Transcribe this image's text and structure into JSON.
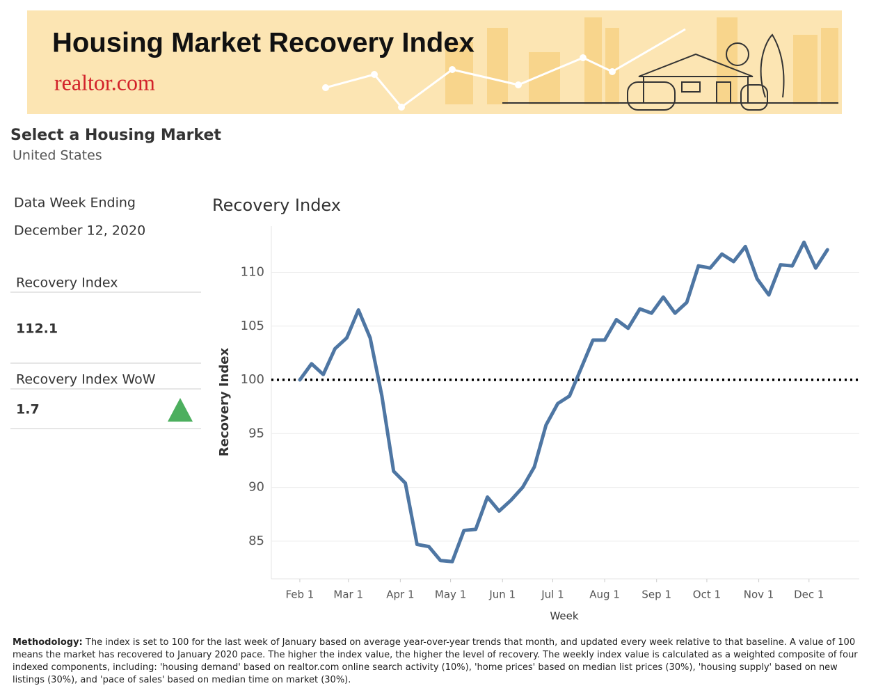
{
  "header": {
    "title": "Housing Market Recovery Index",
    "logo": "realtor.com"
  },
  "sidebar": {
    "select_label": "Select a Housing Market",
    "market": "United States",
    "week_label": "Data Week Ending",
    "week": "December 12, 2020",
    "index_label": "Recovery Index",
    "index_value": 112.1,
    "wow_label": "Recovery Index WoW",
    "wow_value": 1.7
  },
  "chart_data": {
    "type": "line",
    "title": "Recovery Index",
    "xlabel": "Week",
    "ylabel": "Recovery Index",
    "x": [
      "Feb 1",
      "Feb 8",
      "Feb 15",
      "Feb 22",
      "Feb 29",
      "Mar 7",
      "Mar 14",
      "Mar 21",
      "Mar 28",
      "Apr 4",
      "Apr 11",
      "Apr 18",
      "Apr 25",
      "May 2",
      "May 9",
      "May 16",
      "May 23",
      "May 30",
      "Jun 6",
      "Jun 13",
      "Jun 20",
      "Jun 27",
      "Jul 4",
      "Jul 11",
      "Jul 18",
      "Jul 25",
      "Aug 1",
      "Aug 8",
      "Aug 15",
      "Aug 22",
      "Aug 29",
      "Sep 5",
      "Sep 12",
      "Sep 19",
      "Sep 26",
      "Oct 3",
      "Oct 10",
      "Oct 17",
      "Oct 24",
      "Oct 31",
      "Nov 7",
      "Nov 14",
      "Nov 21",
      "Nov 28",
      "Dec 5",
      "Dec 12"
    ],
    "values": [
      100.0,
      101.5,
      100.5,
      102.9,
      103.9,
      106.5,
      103.9,
      98.5,
      91.5,
      90.4,
      84.7,
      84.5,
      83.2,
      83.1,
      86.0,
      86.1,
      89.1,
      87.8,
      88.8,
      90.0,
      91.9,
      95.8,
      97.8,
      98.5,
      101.1,
      103.7,
      103.7,
      105.6,
      104.8,
      106.6,
      106.2,
      107.7,
      106.2,
      107.2,
      110.6,
      110.4,
      111.7,
      111.0,
      112.4,
      109.4,
      107.9,
      110.7,
      110.6,
      112.8,
      110.4,
      112.1
    ],
    "color": "#4e76a3",
    "xlim": [
      "Jan 15",
      "Dec 31"
    ],
    "xticks": [
      "Feb 1",
      "Mar 1",
      "Apr 1",
      "May 1",
      "Jun 1",
      "Jul 1",
      "Aug 1",
      "Sep 1",
      "Oct 1",
      "Nov 1",
      "Dec 1"
    ],
    "ylim": [
      81.5,
      114.3
    ],
    "yticks": [
      85,
      90,
      95,
      100,
      105,
      110
    ],
    "grid": true,
    "refline": 100
  },
  "methodology": {
    "label": "Methodology:",
    "text": "The index is set to 100 for the last week of January based on average year-over-year trends that month, and updated every week relative to that baseline. A value of 100 means the market has recovered to January 2020 pace. The higher the index value, the higher the level of recovery. The weekly index value is calculated as a weighted composite of four indexed components, including: 'housing demand' based on realtor.com online search activity (10%), 'home prices' based on median list prices (30%), 'housing supply' based on new listings (30%), and 'pace of sales' based on median time on market (30%)."
  }
}
